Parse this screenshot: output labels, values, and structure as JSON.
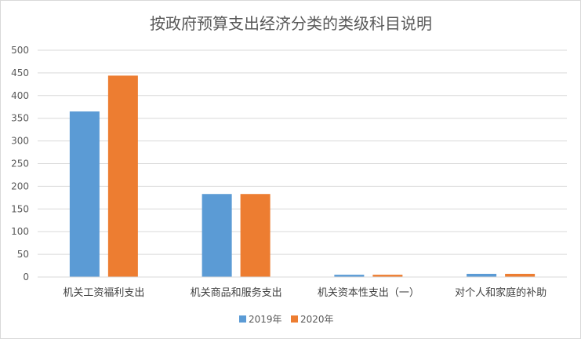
{
  "chart_data": {
    "type": "bar",
    "title": "按政府预算支出经济分类的类级科目说明",
    "xlabel": "",
    "ylabel": "",
    "categories": [
      "机关工资福利支出",
      "机关商品和服务支出",
      "机关资本性支出（一）",
      "对个人和家庭的补助"
    ],
    "series": [
      {
        "name": "2019年",
        "values": [
          365,
          183,
          5,
          7
        ],
        "color": "#5b9bd5"
      },
      {
        "name": "2020年",
        "values": [
          444,
          183,
          5,
          7
        ],
        "color": "#ed7d31"
      }
    ],
    "ylim": [
      0,
      500
    ],
    "yticks": [
      0,
      50,
      100,
      150,
      200,
      250,
      300,
      350,
      400,
      450,
      500
    ],
    "grid": true,
    "legend": "bottom"
  }
}
